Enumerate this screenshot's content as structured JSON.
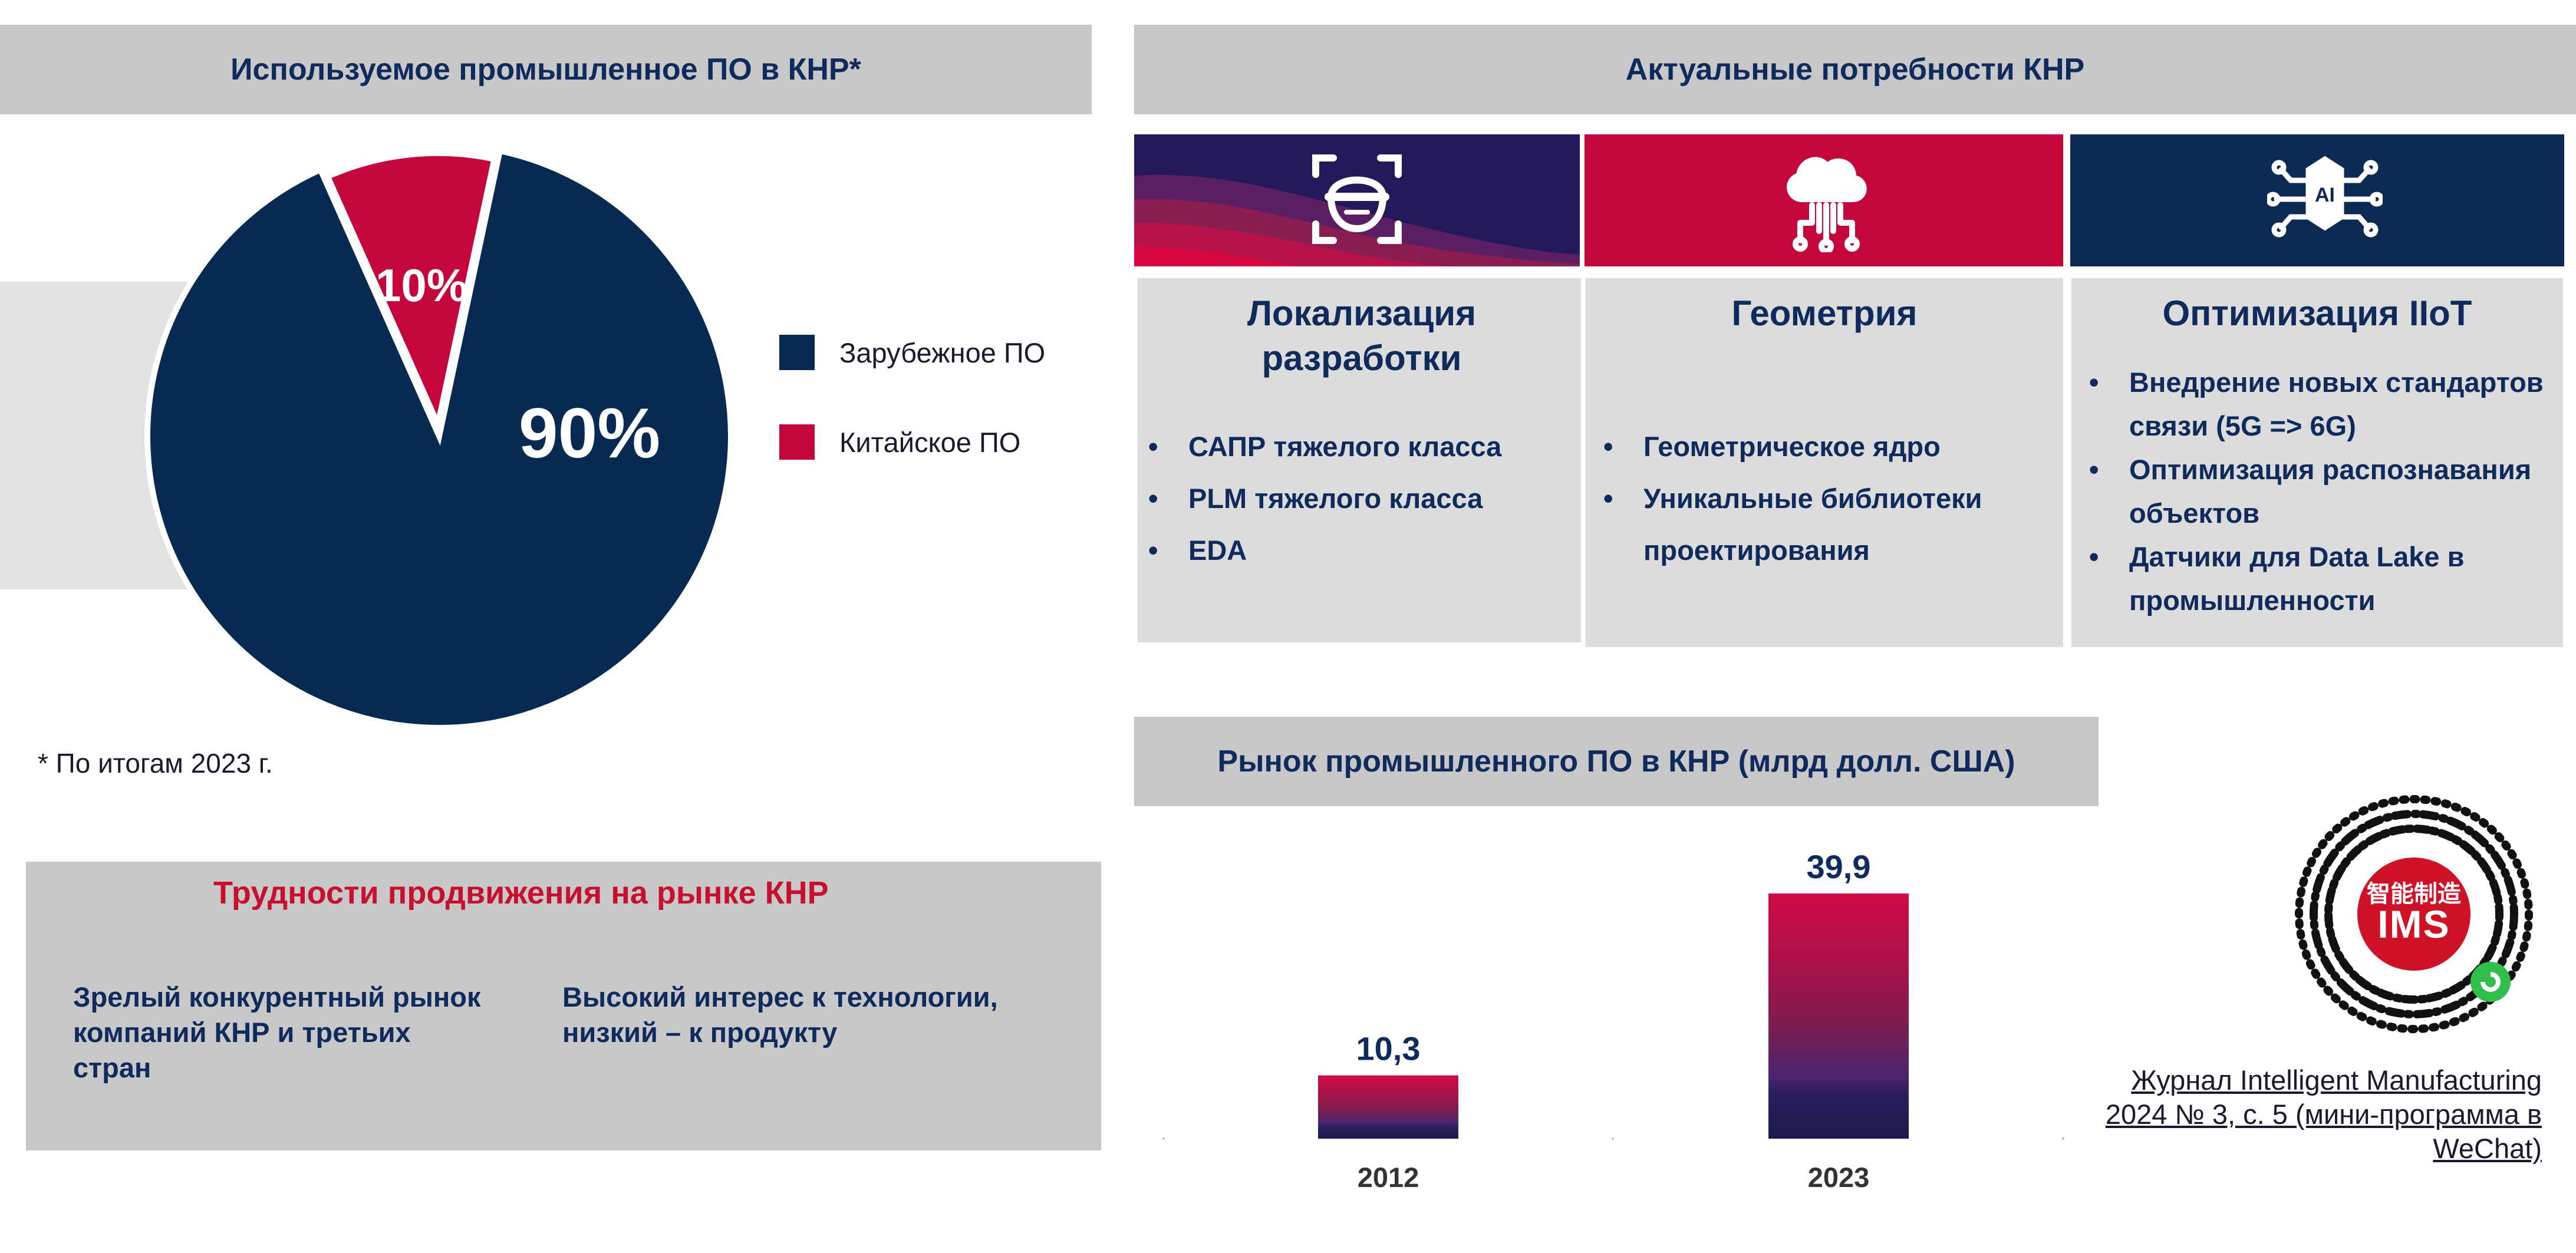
{
  "colors": {
    "navy": "#072a52",
    "crimson": "#c5063d",
    "header_grey": "#c8c8c8",
    "card_grey": "#dcdcdc",
    "difficulty_title": "#c8102e"
  },
  "left": {
    "pie_title": "Используемое промышленное ПО в КНР*",
    "footnote": "* По итогам 2023 г.",
    "difficulties": {
      "title": "Трудности продвижения на рынке КНР",
      "left_text": "Зрелый конкурентный рынок компаний КНР и третьих стран",
      "right_text": "Высокий интерес к технологии, низкий – к продукту"
    }
  },
  "needs": {
    "title": "Актуальные потребности КНР",
    "cards": [
      {
        "icon": "face-scan-icon",
        "title": "Локализация разработки",
        "items": [
          "САПР тяжелого класса",
          "PLM тяжелого класса",
          "EDA"
        ]
      },
      {
        "icon": "cloud-network-icon",
        "title": "Геометрия",
        "items": [
          "Геометрическое ядро",
          "Уникальные библиотеки проектирования"
        ]
      },
      {
        "icon": "ai-chip-icon",
        "title": "Оптимизация IIoT",
        "items": [
          "Внедрение новых стандартов связи (5G => 6G)",
          "Оптимизация распознавания объектов",
          "Датчики для Data Lake в промышленности"
        ]
      }
    ],
    "ai_label": "AI"
  },
  "market": {
    "title": "Рынок промышленного ПО в КНР (млрд долл. США)"
  },
  "journal": {
    "qr_text": "智能制造",
    "qr_logo": "IMS",
    "caption": "Журнал Intelligent Manufacturing 2024 № 3, с. 5 (мини-программа в WeChat)"
  },
  "chart_data": [
    {
      "type": "pie",
      "title": "Используемое промышленное ПО в КНР*",
      "labels": [
        "Зарубежное ПО",
        "Китайское ПО"
      ],
      "values": [
        90,
        10
      ],
      "data_labels": [
        "90%",
        "10%"
      ],
      "colors": [
        "#072a52",
        "#c5063d"
      ],
      "legend": "right"
    },
    {
      "type": "bar",
      "title": "Рынок промышленного ПО в КНР (млрд долл. США)",
      "categories": [
        "2012",
        "2023"
      ],
      "values": [
        10.3,
        39.9
      ],
      "data_labels": [
        "10,3",
        "39,9"
      ],
      "ylim": [
        0,
        39.9
      ]
    }
  ]
}
